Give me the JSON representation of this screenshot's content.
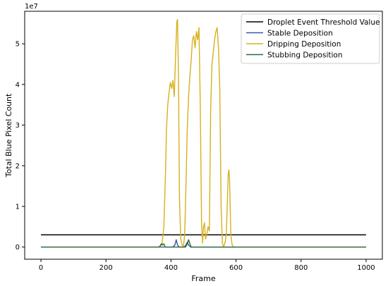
{
  "chart_data": {
    "type": "line",
    "title": "",
    "xlabel": "Frame",
    "ylabel": "Total Blue Pixel Count",
    "y_offset_label": "1e7",
    "xlim": [
      -50,
      1050
    ],
    "ylim": [
      -0.3,
      5.8
    ],
    "x_ticks": [
      0,
      200,
      400,
      600,
      800,
      1000
    ],
    "y_ticks": [
      0,
      1,
      2,
      3,
      4,
      5
    ],
    "grid": false,
    "legend_position": "top-right",
    "series": [
      {
        "name": "Droplet Event Threshold Value",
        "color": "#000000",
        "x": [
          0,
          1000
        ],
        "y": [
          0.3,
          0.3
        ]
      },
      {
        "name": "Stable Deposition",
        "color": "#3a56a7",
        "x": [
          0,
          405,
          412,
          416,
          420,
          426,
          440,
          446,
          450,
          454,
          460,
          600,
          1000
        ],
        "y": [
          0,
          0,
          0.05,
          0.18,
          0.05,
          0,
          0,
          0.05,
          0.12,
          0.05,
          0,
          0,
          0
        ]
      },
      {
        "name": "Dripping Deposition",
        "color": "#d6b11e",
        "x": [
          0,
          360,
          372,
          378,
          383,
          386,
          390,
          394,
          398,
          402,
          406,
          410,
          414,
          418,
          420,
          423,
          426,
          430,
          434,
          438,
          442,
          446,
          450,
          454,
          458,
          462,
          466,
          470,
          474,
          478,
          482,
          486,
          490,
          494,
          497,
          500,
          503,
          506,
          510,
          514,
          518,
          522,
          526,
          530,
          534,
          538,
          542,
          546,
          550,
          554,
          558,
          562,
          566,
          570,
          574,
          576,
          578,
          580,
          584,
          588,
          592,
          600,
          1000
        ],
        "y": [
          0,
          0,
          0.05,
          0.5,
          1.8,
          2.9,
          3.5,
          3.8,
          4.05,
          3.9,
          4.1,
          3.7,
          4.7,
          5.55,
          5.6,
          4.2,
          1.2,
          0.2,
          0.05,
          0,
          0.3,
          1.5,
          2.9,
          3.7,
          4.2,
          4.6,
          5.1,
          5.2,
          4.9,
          5.3,
          5.1,
          5.4,
          3.5,
          0.6,
          0.1,
          0.5,
          0.6,
          0.2,
          0.3,
          0.5,
          0.4,
          3.4,
          4.5,
          4.8,
          5.1,
          5.3,
          5.4,
          4.9,
          3.9,
          1.0,
          0.1,
          0,
          0.1,
          0.3,
          1.3,
          1.8,
          1.9,
          1.7,
          0.3,
          0.05,
          0,
          0,
          0
        ]
      },
      {
        "name": "Stubbing Deposition",
        "color": "#2e6a3a",
        "x": [
          0,
          365,
          370,
          374,
          378,
          382,
          445,
          450,
          454,
          458,
          462,
          1000
        ],
        "y": [
          0,
          0,
          0.08,
          0.05,
          0.08,
          0,
          0,
          0.08,
          0.18,
          0.08,
          0,
          0
        ]
      }
    ]
  }
}
